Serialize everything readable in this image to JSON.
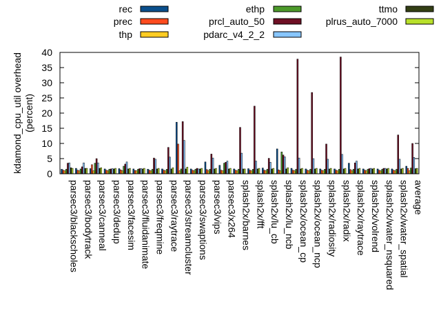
{
  "chart_data": {
    "type": "bar",
    "ylabel": "kdamond_cpu_util overhead\n(percent)",
    "ylim": [
      0,
      40
    ],
    "yticks": [
      0,
      5,
      10,
      15,
      20,
      25,
      30,
      35,
      40
    ],
    "legend_position": "top",
    "grid": false,
    "categories": [
      "parsec3/blackscholes",
      "parsec3/bodytrack",
      "parsec3/canneal",
      "parsec3/dedup",
      "parsec3/facesim",
      "parsec3/fluidanimate",
      "parsec3/freqmine",
      "parsec3/raytrace",
      "parsec3/streamcluster",
      "parsec3/swaptions",
      "parsec3/vips",
      "parsec3/x264",
      "splash2x/barnes",
      "splash2x/fft",
      "splash2x/lu_cb",
      "splash2x/lu_ncb",
      "splash2x/ocean_cp",
      "splash2x/ocean_ncp",
      "splash2x/radiosity",
      "splash2x/radix",
      "splash2x/raytrace",
      "splash2x/volrend",
      "splash2x/water_nsquared",
      "splash2x/water_spatial",
      "average"
    ],
    "series": [
      {
        "name": "rec",
        "color": "#0a4f8c",
        "values": [
          1.5,
          1.8,
          1.7,
          1.6,
          1.7,
          1.6,
          1.5,
          1.6,
          17.0,
          1.6,
          3.9,
          2.8,
          1.6,
          1.7,
          1.9,
          8.2,
          1.8,
          1.6,
          1.6,
          1.6,
          3.5,
          1.6,
          1.6,
          1.6,
          2.5
        ]
      },
      {
        "name": "prec",
        "color": "#ff4b1e",
        "values": [
          1.2,
          1.2,
          3.0,
          1.2,
          1.3,
          1.1,
          1.2,
          1.2,
          9.8,
          1.2,
          1.4,
          1.2,
          1.2,
          1.2,
          1.2,
          1.3,
          1.2,
          1.2,
          1.2,
          1.2,
          1.4,
          1.2,
          1.2,
          1.2,
          1.8
        ]
      },
      {
        "name": "thp",
        "color": "#ffcc22",
        "values": [
          1.0,
          1.0,
          1.0,
          1.0,
          1.0,
          1.0,
          1.0,
          1.0,
          1.0,
          1.0,
          1.0,
          1.0,
          1.0,
          1.0,
          1.0,
          1.0,
          1.0,
          1.0,
          1.0,
          1.0,
          1.0,
          1.0,
          1.0,
          1.0,
          1.0
        ]
      },
      {
        "name": "ethp",
        "color": "#4c9a2a",
        "values": [
          1.5,
          1.6,
          3.5,
          1.5,
          2.5,
          1.5,
          1.5,
          1.5,
          1.6,
          1.5,
          1.5,
          3.5,
          1.5,
          1.5,
          1.5,
          7.2,
          1.5,
          1.5,
          1.5,
          1.5,
          1.5,
          1.5,
          1.5,
          1.5,
          1.9
        ]
      },
      {
        "name": "prcl_auto_50",
        "color": "#6e0f24",
        "values": [
          3.5,
          2.3,
          5.0,
          1.6,
          3.2,
          1.7,
          5.2,
          8.7,
          17.2,
          1.8,
          6.5,
          3.8,
          15.3,
          22.3,
          5.1,
          6.2,
          37.8,
          26.8,
          9.8,
          38.5,
          3.6,
          1.7,
          1.8,
          12.8,
          10.0
        ]
      },
      {
        "name": "pdarc_v4_2_2",
        "color": "#88c6ff",
        "values": [
          3.6,
          3.6,
          3.6,
          1.7,
          3.9,
          1.7,
          4.8,
          5.5,
          11.0,
          1.6,
          5.2,
          4.2,
          6.8,
          4.2,
          3.8,
          5.6,
          5.2,
          5.0,
          4.8,
          6.4,
          4.2,
          1.8,
          1.8,
          4.8,
          5.4
        ]
      },
      {
        "name": "ttmo",
        "color": "#333f14",
        "values": [
          2.0,
          1.8,
          1.8,
          1.6,
          1.6,
          1.6,
          1.6,
          1.6,
          1.6,
          1.6,
          1.6,
          1.6,
          1.6,
          1.6,
          1.6,
          1.6,
          1.6,
          1.6,
          1.6,
          1.6,
          1.6,
          1.6,
          1.6,
          1.6,
          1.7
        ]
      },
      {
        "name": "plrus_auto_7000",
        "color": "#b8e02a",
        "values": [
          1.8,
          1.8,
          2.0,
          1.8,
          1.8,
          1.8,
          1.8,
          2.0,
          2.2,
          1.8,
          1.8,
          1.8,
          1.6,
          1.8,
          1.8,
          2.0,
          1.8,
          1.8,
          1.8,
          1.8,
          1.8,
          1.8,
          1.8,
          1.8,
          1.8
        ]
      }
    ]
  }
}
